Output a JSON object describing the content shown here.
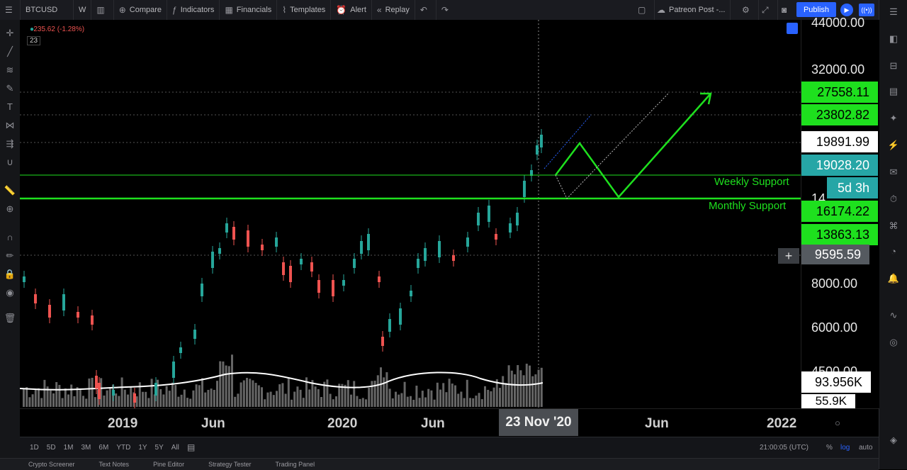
{
  "toolbar": {
    "symbol": "BTCUSD",
    "interval": "W",
    "compare": "Compare",
    "indicators": "Indicators",
    "financials": "Financials",
    "templates": "Templates",
    "alert": "Alert",
    "replay": "Replay",
    "layout_name": "Patreon Post -...",
    "publish": "Publish"
  },
  "legend": {
    "change": "-235.62 (-1.28%)",
    "indicator_value": "23"
  },
  "price_axis": {
    "labels": [
      "44000.00",
      "32000.00",
      "8000.00",
      "6000.00",
      "4500.00",
      "55.9K"
    ],
    "boxes": [
      {
        "value": "27558.11",
        "color": "#1ee01e",
        "text": "#000000"
      },
      {
        "value": "23802.82",
        "color": "#1ee01e",
        "text": "#000000"
      },
      {
        "value": "19891.99",
        "color": "#ffffff",
        "text": "#000000"
      },
      {
        "value": "19028.20",
        "color": "#26a6a6",
        "text": "#ffffff"
      },
      {
        "value": "5d 3h",
        "color": "#26a6a6",
        "text": "#ffffff"
      },
      {
        "value": "16174.22",
        "color": "#1ee01e",
        "text": "#000000"
      },
      {
        "value": "13863.13",
        "color": "#1ee01e",
        "text": "#000000"
      },
      {
        "value": "9595.59",
        "color": "#555a60",
        "text": "#ffffff"
      },
      {
        "value": "93.956K",
        "color": "#ffffff",
        "text": "#000000"
      }
    ],
    "partial_label": "14"
  },
  "annotations": {
    "weekly_support": "Weekly Support",
    "monthly_support": "Monthly Support"
  },
  "time_axis": {
    "labels": [
      "2019",
      "Jun",
      "2020",
      "Jun",
      "Jun",
      "2022"
    ],
    "crosshair": "23 Nov '20"
  },
  "ranges": [
    "1D",
    "5D",
    "1M",
    "3M",
    "6M",
    "YTD",
    "1Y",
    "5Y",
    "All"
  ],
  "bottom_right": {
    "time": "21:00:05 (UTC)",
    "percent": "%",
    "log": "log",
    "auto": "auto"
  },
  "bottom_tabs": [
    "Crypto Screener",
    "Text Notes",
    "Pine Editor",
    "Strategy Tester",
    "Trading Panel"
  ],
  "colors": {
    "up": "#26a69a",
    "down": "#ef5350",
    "support": "#1ee01e",
    "accent": "#2962ff"
  }
}
